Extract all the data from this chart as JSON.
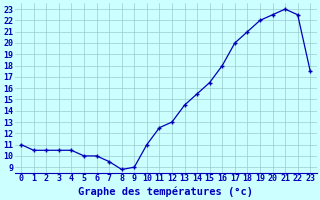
{
  "x": [
    0,
    1,
    2,
    3,
    4,
    5,
    6,
    7,
    8,
    9,
    10,
    11,
    12,
    13,
    14,
    15,
    16,
    17,
    18,
    19,
    20,
    21,
    22,
    23
  ],
  "y": [
    11.0,
    10.5,
    10.5,
    10.5,
    10.5,
    10.0,
    10.0,
    9.5,
    8.8,
    9.0,
    11.0,
    12.5,
    13.0,
    14.5,
    15.5,
    16.5,
    18.0,
    20.0,
    21.0,
    22.0,
    22.5,
    23.0,
    22.5,
    17.5
  ],
  "line_color": "#0000bb",
  "marker_color": "#0000bb",
  "bg_color": "#ccffff",
  "grid_color": "#99cccc",
  "xlabel": "Graphe des températures (°c)",
  "xlabel_color": "#0000bb",
  "xlabel_bg": "#ccffff",
  "yticks": [
    9,
    10,
    11,
    12,
    13,
    14,
    15,
    16,
    17,
    18,
    19,
    20,
    21,
    22,
    23
  ],
  "xlim": [
    -0.5,
    23.5
  ],
  "ylim": [
    8.5,
    23.5
  ],
  "tick_fontsize": 6,
  "label_fontsize": 7.5
}
